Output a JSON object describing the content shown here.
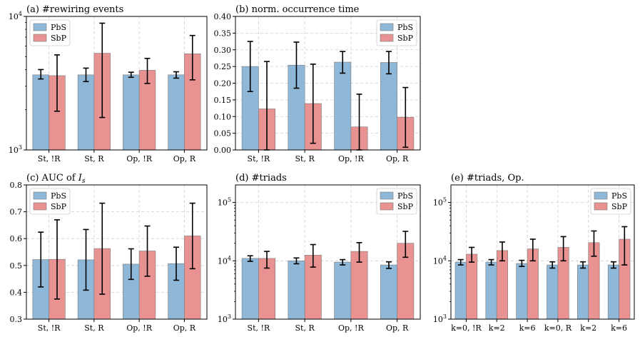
{
  "colors": {
    "PbS": "#8fb8d8",
    "SbP": "#e89292",
    "edge": "#7a7a7a"
  },
  "legend": [
    "PbS",
    "SbP"
  ],
  "chart_data": [
    {
      "type": "bar",
      "title": "(a) #rewiring events",
      "yscale": "log",
      "ylim": [
        1000,
        10000
      ],
      "yticks": [
        {
          "v": 1000,
          "base": "10",
          "exp": "3"
        },
        {
          "v": 10000,
          "base": "10",
          "exp": "4"
        }
      ],
      "categories": [
        "St, !R",
        "St, R",
        "Op, !R",
        "Op, R"
      ],
      "series": [
        {
          "name": "PbS",
          "values": [
            3650,
            3650,
            3650,
            3650
          ],
          "lower": [
            3400,
            3250,
            3500,
            3450
          ],
          "upper": [
            4000,
            4100,
            3820,
            3850
          ]
        },
        {
          "name": "SbP",
          "values": [
            3600,
            5300,
            3950,
            5250
          ],
          "lower": [
            1950,
            1750,
            3150,
            3350
          ],
          "upper": [
            5150,
            8900,
            4850,
            7200
          ]
        }
      ],
      "legend_loc": "upper left"
    },
    {
      "type": "bar",
      "title": "(b) norm. occurrence time",
      "yscale": "linear",
      "ylim": [
        0,
        0.4
      ],
      "yticks": [
        {
          "v": 0,
          "label": "0.00"
        },
        {
          "v": 0.05,
          "label": "0.05"
        },
        {
          "v": 0.1,
          "label": "0.10"
        },
        {
          "v": 0.15,
          "label": "0.15"
        },
        {
          "v": 0.2,
          "label": "0.20"
        },
        {
          "v": 0.25,
          "label": "0.25"
        },
        {
          "v": 0.3,
          "label": "0.30"
        },
        {
          "v": 0.35,
          "label": "0.35"
        },
        {
          "v": 0.4,
          "label": "0.40"
        }
      ],
      "categories": [
        "St, !R",
        "St, R",
        "Op, !R",
        "Op, R"
      ],
      "series": [
        {
          "name": "PbS",
          "values": [
            0.25,
            0.254,
            0.263,
            0.262
          ],
          "lower": [
            0.175,
            0.185,
            0.23,
            0.228
          ],
          "upper": [
            0.325,
            0.323,
            0.295,
            0.295
          ]
        },
        {
          "name": "SbP",
          "values": [
            0.123,
            0.139,
            0.069,
            0.098
          ],
          "lower": [
            0.0,
            0.02,
            0.0,
            0.008
          ],
          "upper": [
            0.265,
            0.257,
            0.167,
            0.187
          ]
        }
      ],
      "legend_loc": "upper right"
    },
    {
      "type": "bar",
      "title": "(c) AUC of ",
      "title_math": "I",
      "title_sub": "s",
      "yscale": "linear",
      "ylim": [
        0.3,
        0.8
      ],
      "yticks": [
        {
          "v": 0.3,
          "label": "0.3"
        },
        {
          "v": 0.4,
          "label": "0.4"
        },
        {
          "v": 0.5,
          "label": "0.5"
        },
        {
          "v": 0.6,
          "label": "0.6"
        },
        {
          "v": 0.7,
          "label": "0.7"
        },
        {
          "v": 0.8,
          "label": "0.8"
        }
      ],
      "categories": [
        "St, !R",
        "St, R",
        "Op, !R",
        "Op, R"
      ],
      "series": [
        {
          "name": "PbS",
          "values": [
            0.522,
            0.521,
            0.505,
            0.507
          ],
          "lower": [
            0.42,
            0.408,
            0.448,
            0.445
          ],
          "upper": [
            0.624,
            0.634,
            0.562,
            0.568
          ]
        },
        {
          "name": "SbP",
          "values": [
            0.523,
            0.563,
            0.554,
            0.61
          ],
          "lower": [
            0.375,
            0.393,
            0.46,
            0.488
          ],
          "upper": [
            0.67,
            0.732,
            0.647,
            0.732
          ]
        }
      ],
      "legend_loc": "upper left"
    },
    {
      "type": "bar",
      "title": "(d) #triads",
      "yscale": "log",
      "ylim": [
        1000,
        200000
      ],
      "yticks": [
        {
          "v": 1000,
          "base": "10",
          "exp": "3"
        },
        {
          "v": 10000,
          "base": "10",
          "exp": "4"
        },
        {
          "v": 100000,
          "base": "10",
          "exp": "5"
        }
      ],
      "categories": [
        "St, !R",
        "St, R",
        "Op, !R",
        "Op, R"
      ],
      "series": [
        {
          "name": "PbS",
          "values": [
            11000,
            10000,
            9500,
            8500
          ],
          "lower": [
            9800,
            8900,
            8500,
            7400
          ],
          "upper": [
            12200,
            11200,
            10500,
            9600
          ]
        },
        {
          "name": "SbP",
          "values": [
            11000,
            12500,
            14500,
            20000
          ],
          "lower": [
            7500,
            7800,
            9500,
            11500
          ],
          "upper": [
            14500,
            19000,
            20500,
            32000
          ]
        }
      ],
      "legend_loc": "upper right"
    },
    {
      "type": "bar",
      "title": "(e) #triads, Op.",
      "yscale": "log",
      "ylim": [
        1000,
        200000
      ],
      "yticks": [
        {
          "v": 1000,
          "base": "10",
          "exp": "3"
        },
        {
          "v": 10000,
          "base": "10",
          "exp": "4"
        },
        {
          "v": 100000,
          "base": "10",
          "exp": "5"
        }
      ],
      "categories": [
        "k=0, !R",
        "k=2",
        "k=6",
        "k=0, R",
        "k=2",
        "k=6"
      ],
      "series": [
        {
          "name": "PbS",
          "values": [
            9500,
            9500,
            9000,
            8500,
            8500,
            8500
          ],
          "lower": [
            8500,
            8500,
            8000,
            7500,
            7500,
            7500
          ],
          "upper": [
            10500,
            10500,
            10200,
            9600,
            9600,
            9600
          ]
        },
        {
          "name": "SbP",
          "values": [
            13000,
            15000,
            16000,
            17000,
            20500,
            23500
          ],
          "lower": [
            9500,
            10000,
            10000,
            10000,
            12000,
            8500
          ],
          "upper": [
            17000,
            21000,
            23500,
            26000,
            32500,
            38500
          ]
        }
      ],
      "legend_loc": "upper right"
    }
  ]
}
